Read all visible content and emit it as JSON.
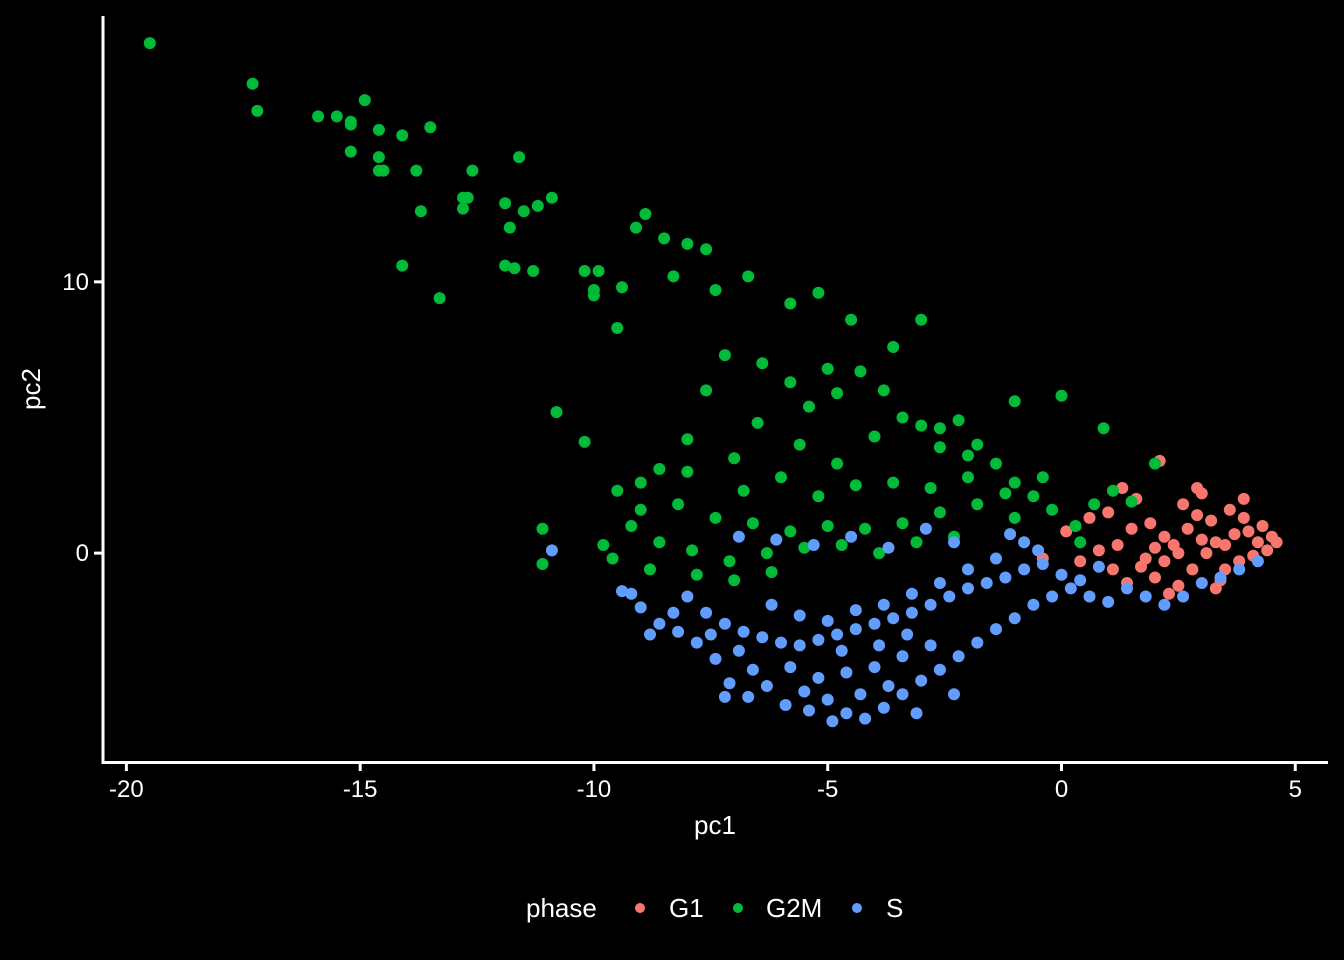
{
  "chart_data": {
    "type": "scatter",
    "title": "",
    "xlabel": "pc1",
    "ylabel": "pc2",
    "xlim": [
      -20.5,
      5.7
    ],
    "ylim": [
      -7.7,
      19.8
    ],
    "x_ticks": [
      -20,
      -15,
      -10,
      -5,
      0,
      5
    ],
    "x_tick_labels": [
      "-20",
      "-15",
      "-10",
      "-5",
      "0",
      "5"
    ],
    "y_ticks": [
      0,
      10
    ],
    "y_tick_labels": [
      "0",
      "10"
    ],
    "grid": false,
    "background": "#000000",
    "axis_color": "#ffffff",
    "legend": {
      "title": "phase",
      "position": "bottom",
      "entries": [
        "G1",
        "G2M",
        "S"
      ]
    },
    "series": [
      {
        "name": "G1",
        "color": "#F8766D",
        "points": [
          [
            3.0,
            0.5
          ],
          [
            3.5,
            0.3
          ],
          [
            4.0,
            0.8
          ],
          [
            2.5,
            0.0
          ],
          [
            3.2,
            1.2
          ],
          [
            3.8,
            -0.3
          ],
          [
            2.8,
            -0.6
          ],
          [
            4.2,
            0.4
          ],
          [
            3.6,
            1.6
          ],
          [
            2.2,
            0.6
          ],
          [
            1.8,
            -0.2
          ],
          [
            1.5,
            0.9
          ],
          [
            2.0,
            -0.9
          ],
          [
            3.4,
            -1.0
          ],
          [
            4.4,
            0.1
          ],
          [
            4.5,
            0.6
          ],
          [
            2.6,
            1.8
          ],
          [
            3.0,
            2.2
          ],
          [
            3.9,
            2.0
          ],
          [
            1.2,
            0.3
          ],
          [
            0.8,
            0.1
          ],
          [
            1.0,
            1.5
          ],
          [
            1.6,
            2.0
          ],
          [
            2.1,
            3.4
          ],
          [
            2.9,
            2.4
          ],
          [
            3.3,
            -1.3
          ],
          [
            2.3,
            -1.5
          ],
          [
            1.4,
            -1.1
          ],
          [
            0.4,
            -0.3
          ],
          [
            0.1,
            0.8
          ],
          [
            3.1,
            0.0
          ],
          [
            2.7,
            0.9
          ],
          [
            3.7,
            0.7
          ],
          [
            4.1,
            -0.1
          ],
          [
            2.4,
            0.3
          ],
          [
            1.9,
            1.1
          ],
          [
            3.5,
            -0.6
          ],
          [
            4.3,
            1.0
          ],
          [
            2.0,
            0.2
          ],
          [
            3.3,
            0.4
          ],
          [
            0.6,
            1.3
          ],
          [
            1.7,
            -0.5
          ],
          [
            2.9,
            1.4
          ],
          [
            3.9,
            1.3
          ],
          [
            4.6,
            0.4
          ],
          [
            1.3,
            2.4
          ],
          [
            2.5,
            -1.2
          ],
          [
            -0.4,
            -0.2
          ],
          [
            1.1,
            -0.6
          ],
          [
            2.2,
            -0.3
          ]
        ]
      },
      {
        "name": "G2M",
        "color": "#00BA38",
        "points": [
          [
            -19.5,
            18.8
          ],
          [
            -17.3,
            17.3
          ],
          [
            -17.2,
            16.3
          ],
          [
            -15.9,
            16.1
          ],
          [
            -15.5,
            16.1
          ],
          [
            -15.2,
            15.9
          ],
          [
            -15.2,
            15.8
          ],
          [
            -14.9,
            16.7
          ],
          [
            -14.6,
            15.6
          ],
          [
            -14.1,
            15.4
          ],
          [
            -13.5,
            15.7
          ],
          [
            -15.2,
            14.8
          ],
          [
            -14.6,
            14.6
          ],
          [
            -14.6,
            14.1
          ],
          [
            -13.8,
            14.1
          ],
          [
            -14.5,
            14.1
          ],
          [
            -13.3,
            9.4
          ],
          [
            -14.1,
            10.6
          ],
          [
            -13.7,
            12.6
          ],
          [
            -12.8,
            12.7
          ],
          [
            -12.6,
            14.1
          ],
          [
            -12.8,
            13.1
          ],
          [
            -12.7,
            13.1
          ],
          [
            -11.9,
            12.9
          ],
          [
            -11.6,
            14.6
          ],
          [
            -11.2,
            12.8
          ],
          [
            -11.8,
            12.0
          ],
          [
            -11.5,
            12.6
          ],
          [
            -11.9,
            10.6
          ],
          [
            -11.7,
            10.5
          ],
          [
            -11.3,
            10.4
          ],
          [
            -10.9,
            13.1
          ],
          [
            -10.2,
            10.4
          ],
          [
            -9.9,
            10.4
          ],
          [
            -10.0,
            9.5
          ],
          [
            -9.4,
            9.8
          ],
          [
            -9.1,
            12.0
          ],
          [
            -8.9,
            12.5
          ],
          [
            -8.5,
            11.6
          ],
          [
            -8.0,
            11.4
          ],
          [
            -8.3,
            10.2
          ],
          [
            -7.6,
            11.2
          ],
          [
            -7.4,
            9.7
          ],
          [
            -6.7,
            10.2
          ],
          [
            -5.2,
            9.6
          ],
          [
            -4.5,
            8.6
          ],
          [
            -3.0,
            8.6
          ],
          [
            -5.8,
            9.2
          ],
          [
            -9.5,
            8.3
          ],
          [
            -10.0,
            9.7
          ],
          [
            -10.2,
            4.1
          ],
          [
            -10.8,
            5.2
          ],
          [
            -11.1,
            0.9
          ],
          [
            -11.1,
            -0.4
          ],
          [
            -9.8,
            0.3
          ],
          [
            -9.5,
            2.3
          ],
          [
            -9.0,
            1.6
          ],
          [
            -8.6,
            3.1
          ],
          [
            -8.0,
            4.2
          ],
          [
            -7.6,
            6.0
          ],
          [
            -7.2,
            7.3
          ],
          [
            -6.4,
            7.0
          ],
          [
            -5.8,
            6.3
          ],
          [
            -5.4,
            5.4
          ],
          [
            -4.8,
            5.9
          ],
          [
            -4.3,
            6.7
          ],
          [
            -3.8,
            6.0
          ],
          [
            -3.4,
            5.0
          ],
          [
            -3.0,
            4.7
          ],
          [
            -2.6,
            3.9
          ],
          [
            -2.2,
            4.9
          ],
          [
            -1.8,
            4.0
          ],
          [
            -1.4,
            3.3
          ],
          [
            -1.0,
            2.6
          ],
          [
            -0.6,
            2.1
          ],
          [
            -0.2,
            1.6
          ],
          [
            0.3,
            1.0
          ],
          [
            0.7,
            1.8
          ],
          [
            1.1,
            2.3
          ],
          [
            0.9,
            4.6
          ],
          [
            2.0,
            3.3
          ],
          [
            1.5,
            1.9
          ],
          [
            -1.0,
            5.6
          ],
          [
            0.0,
            5.8
          ],
          [
            -2.6,
            4.6
          ],
          [
            -4.0,
            4.3
          ],
          [
            -5.6,
            4.0
          ],
          [
            -7.0,
            3.5
          ],
          [
            -8.0,
            3.0
          ],
          [
            -9.0,
            2.6
          ],
          [
            -8.2,
            1.8
          ],
          [
            -7.4,
            1.3
          ],
          [
            -6.6,
            1.1
          ],
          [
            -5.8,
            0.8
          ],
          [
            -5.0,
            1.0
          ],
          [
            -4.2,
            0.9
          ],
          [
            -3.4,
            1.1
          ],
          [
            -2.6,
            1.5
          ],
          [
            -1.8,
            1.8
          ],
          [
            -1.0,
            1.3
          ],
          [
            -9.2,
            1.0
          ],
          [
            -8.6,
            0.4
          ],
          [
            -7.9,
            0.1
          ],
          [
            -7.1,
            -0.3
          ],
          [
            -6.3,
            0.0
          ],
          [
            -5.5,
            0.2
          ],
          [
            -4.7,
            0.3
          ],
          [
            -3.9,
            0.0
          ],
          [
            -3.1,
            0.4
          ],
          [
            -2.3,
            0.6
          ],
          [
            -6.8,
            2.3
          ],
          [
            -6.0,
            2.8
          ],
          [
            -5.2,
            2.1
          ],
          [
            -4.4,
            2.5
          ],
          [
            -3.6,
            2.6
          ],
          [
            -2.8,
            2.4
          ],
          [
            -2.0,
            2.8
          ],
          [
            -1.2,
            2.2
          ],
          [
            -0.4,
            2.8
          ],
          [
            0.4,
            0.4
          ],
          [
            -7.8,
            -0.8
          ],
          [
            -7.0,
            -1.0
          ],
          [
            -6.2,
            -0.7
          ],
          [
            -9.6,
            -0.2
          ],
          [
            -8.8,
            -0.6
          ],
          [
            -6.5,
            4.8
          ],
          [
            -5.0,
            6.8
          ],
          [
            -3.6,
            7.6
          ],
          [
            -4.8,
            3.3
          ],
          [
            -2.0,
            3.6
          ]
        ]
      },
      {
        "name": "S",
        "color": "#619CFF",
        "points": [
          [
            -10.9,
            0.1
          ],
          [
            -9.4,
            -1.4
          ],
          [
            -9.2,
            -1.5
          ],
          [
            -9.0,
            -2.0
          ],
          [
            -8.6,
            -2.6
          ],
          [
            -8.2,
            -2.9
          ],
          [
            -7.8,
            -3.3
          ],
          [
            -7.4,
            -3.9
          ],
          [
            -7.1,
            -4.8
          ],
          [
            -6.7,
            -5.3
          ],
          [
            -6.3,
            -4.9
          ],
          [
            -5.9,
            -5.6
          ],
          [
            -5.4,
            -5.8
          ],
          [
            -5.0,
            -5.4
          ],
          [
            -4.6,
            -5.9
          ],
          [
            -4.2,
            -6.1
          ],
          [
            -3.8,
            -5.7
          ],
          [
            -3.4,
            -5.2
          ],
          [
            -3.0,
            -4.7
          ],
          [
            -2.6,
            -4.3
          ],
          [
            -2.2,
            -3.8
          ],
          [
            -1.8,
            -3.3
          ],
          [
            -1.4,
            -2.8
          ],
          [
            -1.0,
            -2.4
          ],
          [
            -0.6,
            -1.9
          ],
          [
            -0.2,
            -1.6
          ],
          [
            0.2,
            -1.3
          ],
          [
            0.6,
            -1.6
          ],
          [
            1.0,
            -1.8
          ],
          [
            1.4,
            -1.3
          ],
          [
            1.8,
            -1.6
          ],
          [
            2.2,
            -1.9
          ],
          [
            2.6,
            -1.6
          ],
          [
            3.0,
            -1.1
          ],
          [
            3.4,
            -0.9
          ],
          [
            3.8,
            -0.6
          ],
          [
            4.2,
            -0.3
          ],
          [
            -8.0,
            -1.6
          ],
          [
            -7.6,
            -2.2
          ],
          [
            -7.2,
            -2.6
          ],
          [
            -6.8,
            -2.9
          ],
          [
            -6.4,
            -3.1
          ],
          [
            -6.0,
            -3.3
          ],
          [
            -5.6,
            -3.4
          ],
          [
            -5.2,
            -3.2
          ],
          [
            -4.8,
            -3.0
          ],
          [
            -4.4,
            -2.8
          ],
          [
            -4.0,
            -2.6
          ],
          [
            -3.6,
            -2.4
          ],
          [
            -3.2,
            -2.2
          ],
          [
            -2.8,
            -1.9
          ],
          [
            -2.4,
            -1.6
          ],
          [
            -2.0,
            -1.3
          ],
          [
            -1.6,
            -1.1
          ],
          [
            -1.2,
            -0.9
          ],
          [
            -0.8,
            -0.6
          ],
          [
            -0.4,
            -0.4
          ],
          [
            0.0,
            -0.8
          ],
          [
            0.4,
            -1.0
          ],
          [
            0.8,
            -0.5
          ],
          [
            -5.8,
            -4.2
          ],
          [
            -5.2,
            -4.6
          ],
          [
            -4.6,
            -4.4
          ],
          [
            -4.0,
            -4.2
          ],
          [
            -3.4,
            -3.8
          ],
          [
            -2.8,
            -3.4
          ],
          [
            -6.2,
            -1.9
          ],
          [
            -5.6,
            -2.3
          ],
          [
            -5.0,
            -2.5
          ],
          [
            -4.4,
            -2.1
          ],
          [
            -3.8,
            -1.9
          ],
          [
            -3.2,
            -1.5
          ],
          [
            -2.6,
            -1.1
          ],
          [
            -2.0,
            -0.6
          ],
          [
            -1.4,
            -0.2
          ],
          [
            -0.8,
            0.4
          ],
          [
            -6.9,
            0.6
          ],
          [
            -6.1,
            0.5
          ],
          [
            -5.3,
            0.3
          ],
          [
            -4.5,
            0.6
          ],
          [
            -3.7,
            0.2
          ],
          [
            -2.9,
            0.9
          ],
          [
            -2.3,
            0.4
          ],
          [
            -1.1,
            0.7
          ],
          [
            -0.5,
            0.1
          ],
          [
            -7.2,
            -5.3
          ],
          [
            -6.6,
            -4.3
          ],
          [
            -4.9,
            -6.2
          ],
          [
            -3.1,
            -5.9
          ],
          [
            -2.3,
            -5.2
          ],
          [
            -5.5,
            -5.1
          ],
          [
            -4.3,
            -5.2
          ],
          [
            -3.7,
            -4.9
          ],
          [
            -6.9,
            -3.6
          ],
          [
            -7.5,
            -3.0
          ],
          [
            -8.3,
            -2.2
          ],
          [
            -8.8,
            -3.0
          ],
          [
            -4.7,
            -3.6
          ],
          [
            -3.9,
            -3.4
          ],
          [
            -3.3,
            -3.0
          ]
        ]
      }
    ]
  }
}
